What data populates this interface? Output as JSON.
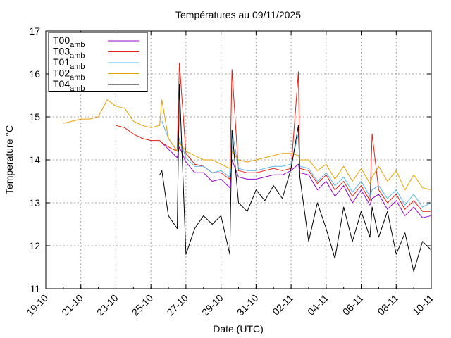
{
  "chart_data": {
    "type": "line",
    "title": "Températures  au 09/11/2025",
    "xlabel": "Date (UTC)",
    "ylabel": "Temperature °C",
    "xlim": [
      "19-10",
      "10-11"
    ],
    "xticks": [
      "19-10",
      "21-10",
      "23-10",
      "25-10",
      "27-10",
      "29-10",
      "31-10",
      "02-11",
      "04-11",
      "06-11",
      "08-11",
      "10-11"
    ],
    "ylim": [
      11,
      17
    ],
    "yticks": [
      11,
      12,
      13,
      14,
      15,
      16,
      17
    ],
    "grid": true,
    "legend": "top-left",
    "x": [
      "20-10 00:00",
      "20-10 12:00",
      "21-10 00:00",
      "21-10 12:00",
      "22-10 00:00",
      "22-10 12:00",
      "23-10 00:00",
      "23-10 12:00",
      "24-10 00:00",
      "24-10 12:00",
      "25-10 00:00",
      "25-10 12:00",
      "25-10 15:00",
      "26-10 00:00",
      "26-10 12:00",
      "26-10 15:00",
      "27-10 00:00",
      "27-10 12:00",
      "28-10 00:00",
      "28-10 12:00",
      "29-10 00:00",
      "29-10 12:00",
      "29-10 15:00",
      "30-10 00:00",
      "30-10 12:00",
      "31-10 00:00",
      "31-10 12:00",
      "01-11 00:00",
      "01-11 12:00",
      "02-11 00:00",
      "02-11 10:00",
      "02-11 12:00",
      "03-11 00:00",
      "03-11 12:00",
      "04-11 00:00",
      "04-11 12:00",
      "05-11 00:00",
      "05-11 12:00",
      "06-11 00:00",
      "06-11 12:00",
      "06-11 15:00",
      "07-11 00:00",
      "07-11 12:00",
      "08-11 00:00",
      "08-11 12:00",
      "09-11 00:00",
      "09-11 12:00",
      "10-11 00:00"
    ],
    "series": [
      {
        "name": "T00",
        "name_subscript": "amb",
        "color": "#9400d3",
        "values": [
          null,
          null,
          null,
          null,
          null,
          null,
          null,
          null,
          null,
          null,
          null,
          null,
          14.4,
          14.25,
          14.05,
          14.3,
          13.95,
          13.7,
          13.7,
          13.5,
          13.55,
          13.35,
          14.0,
          13.6,
          13.55,
          13.55,
          13.6,
          13.65,
          13.65,
          13.75,
          13.9,
          13.7,
          13.65,
          13.3,
          13.5,
          13.15,
          13.4,
          13.0,
          13.3,
          12.95,
          13.1,
          13.2,
          12.85,
          13.05,
          12.7,
          12.9,
          12.65,
          12.7
        ]
      },
      {
        "name": "T03",
        "name_subscript": "amb",
        "color": "#e51e10",
        "values": [
          null,
          null,
          null,
          null,
          null,
          null,
          14.8,
          14.75,
          14.6,
          14.5,
          14.45,
          14.45,
          14.4,
          14.3,
          14.2,
          16.25,
          14.15,
          13.9,
          13.85,
          13.7,
          13.7,
          13.55,
          16.1,
          13.75,
          13.7,
          13.7,
          13.75,
          13.8,
          13.75,
          13.8,
          16.05,
          13.8,
          13.75,
          13.45,
          13.65,
          13.3,
          13.5,
          13.15,
          13.4,
          13.05,
          14.6,
          13.3,
          13.0,
          13.2,
          12.85,
          13.05,
          12.8,
          12.8
        ]
      },
      {
        "name": "T01",
        "name_subscript": "amb",
        "color": "#56b4e9",
        "values": [
          null,
          null,
          null,
          null,
          null,
          null,
          null,
          null,
          null,
          null,
          null,
          null,
          14.9,
          14.5,
          14.2,
          14.5,
          14.05,
          13.85,
          13.85,
          13.7,
          13.75,
          13.6,
          14.7,
          13.8,
          13.75,
          13.75,
          13.8,
          13.85,
          13.85,
          13.9,
          14.6,
          13.85,
          13.8,
          13.5,
          13.7,
          13.4,
          13.6,
          13.25,
          13.5,
          13.15,
          13.3,
          13.4,
          13.1,
          13.3,
          12.95,
          13.2,
          12.9,
          13.0
        ]
      },
      {
        "name": "T02",
        "name_subscript": "amb",
        "color": "#e69f00",
        "values": [
          14.85,
          14.9,
          14.95,
          14.95,
          15.0,
          15.4,
          15.25,
          15.2,
          14.9,
          14.8,
          14.75,
          14.8,
          15.4,
          14.5,
          14.2,
          14.4,
          14.2,
          14.1,
          14.0,
          14.0,
          13.9,
          13.8,
          14.2,
          14.0,
          13.95,
          14.0,
          14.05,
          14.1,
          14.15,
          14.15,
          14.1,
          14.0,
          14.0,
          13.75,
          13.9,
          13.55,
          13.85,
          13.5,
          13.8,
          13.45,
          13.6,
          13.85,
          13.5,
          13.75,
          13.3,
          13.65,
          13.35,
          13.3
        ]
      },
      {
        "name": "T04",
        "name_subscript": "amb",
        "color": "#000000",
        "values": [
          null,
          null,
          null,
          null,
          null,
          null,
          null,
          null,
          null,
          null,
          null,
          13.65,
          13.75,
          12.7,
          12.4,
          15.75,
          11.8,
          12.4,
          12.7,
          12.5,
          12.7,
          11.8,
          14.7,
          13.0,
          12.8,
          13.3,
          13.05,
          13.4,
          13.1,
          13.8,
          14.8,
          13.6,
          12.1,
          13.0,
          12.4,
          11.7,
          12.9,
          12.1,
          12.8,
          12.2,
          12.9,
          12.2,
          12.8,
          11.8,
          12.3,
          11.4,
          12.1,
          11.9
        ]
      }
    ]
  }
}
